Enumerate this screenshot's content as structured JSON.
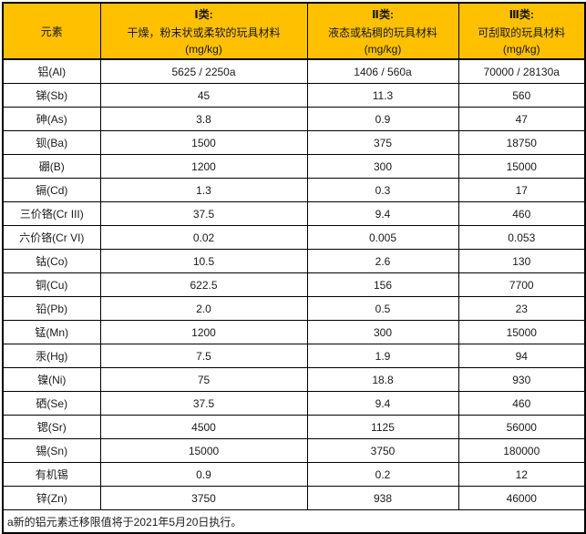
{
  "colors": {
    "header_bg": "#FFC000",
    "border": "#000000",
    "text": "#1a1a1a",
    "table_bg": "#FFFFFF"
  },
  "table": {
    "header": {
      "element_column": "元素",
      "categories": [
        {
          "title": "Ⅰ类:",
          "desc": "干燥，粉末状或柔软的玩具材料",
          "unit": "(mg/kg)"
        },
        {
          "title": "Ⅱ类:",
          "desc": "液态或粘稠的玩具材料",
          "unit": "(mg/kg)"
        },
        {
          "title": "Ⅲ类:",
          "desc": "可刮取的玩具材料",
          "unit": "(mg/kg)"
        }
      ]
    },
    "rows": [
      {
        "element": "铝(Al)",
        "cat1": "5625 / 2250a",
        "cat2": "1406 / 560a",
        "cat3": "70000 / 28130a"
      },
      {
        "element": "锑(Sb)",
        "cat1": "45",
        "cat2": "11.3",
        "cat3": "560"
      },
      {
        "element": "砷(As)",
        "cat1": "3.8",
        "cat2": "0.9",
        "cat3": "47"
      },
      {
        "element": "钡(Ba)",
        "cat1": "1500",
        "cat2": "375",
        "cat3": "18750"
      },
      {
        "element": "硼(B)",
        "cat1": "1200",
        "cat2": "300",
        "cat3": "15000"
      },
      {
        "element": "镉(Cd)",
        "cat1": "1.3",
        "cat2": "0.3",
        "cat3": "17"
      },
      {
        "element": "三价铬(Cr III)",
        "cat1": "37.5",
        "cat2": "9.4",
        "cat3": "460"
      },
      {
        "element": "六价铬(Cr VI)",
        "cat1": "0.02",
        "cat2": "0.005",
        "cat3": "0.053"
      },
      {
        "element": "钴(Co)",
        "cat1": "10.5",
        "cat2": "2.6",
        "cat3": "130"
      },
      {
        "element": "铜(Cu)",
        "cat1": "622.5",
        "cat2": "156",
        "cat3": "7700"
      },
      {
        "element": "铅(Pb)",
        "cat1": "2.0",
        "cat2": "0.5",
        "cat3": "23"
      },
      {
        "element": "锰(Mn)",
        "cat1": "1200",
        "cat2": "300",
        "cat3": "15000"
      },
      {
        "element": "汞(Hg)",
        "cat1": "7.5",
        "cat2": "1.9",
        "cat3": "94"
      },
      {
        "element": "镍(Ni)",
        "cat1": "75",
        "cat2": "18.8",
        "cat3": "930"
      },
      {
        "element": "硒(Se)",
        "cat1": "37.5",
        "cat2": "9.4",
        "cat3": "460"
      },
      {
        "element": "锶(Sr)",
        "cat1": "4500",
        "cat2": "1125",
        "cat3": "56000"
      },
      {
        "element": "锡(Sn)",
        "cat1": "15000",
        "cat2": "3750",
        "cat3": "180000"
      },
      {
        "element": "有机锡",
        "cat1": "0.9",
        "cat2": "0.2",
        "cat3": "12"
      },
      {
        "element": "锌(Zn)",
        "cat1": "3750",
        "cat2": "938",
        "cat3": "46000"
      }
    ],
    "footnote": "a新的铝元素迁移限值将于2021年5月20日执行。"
  }
}
